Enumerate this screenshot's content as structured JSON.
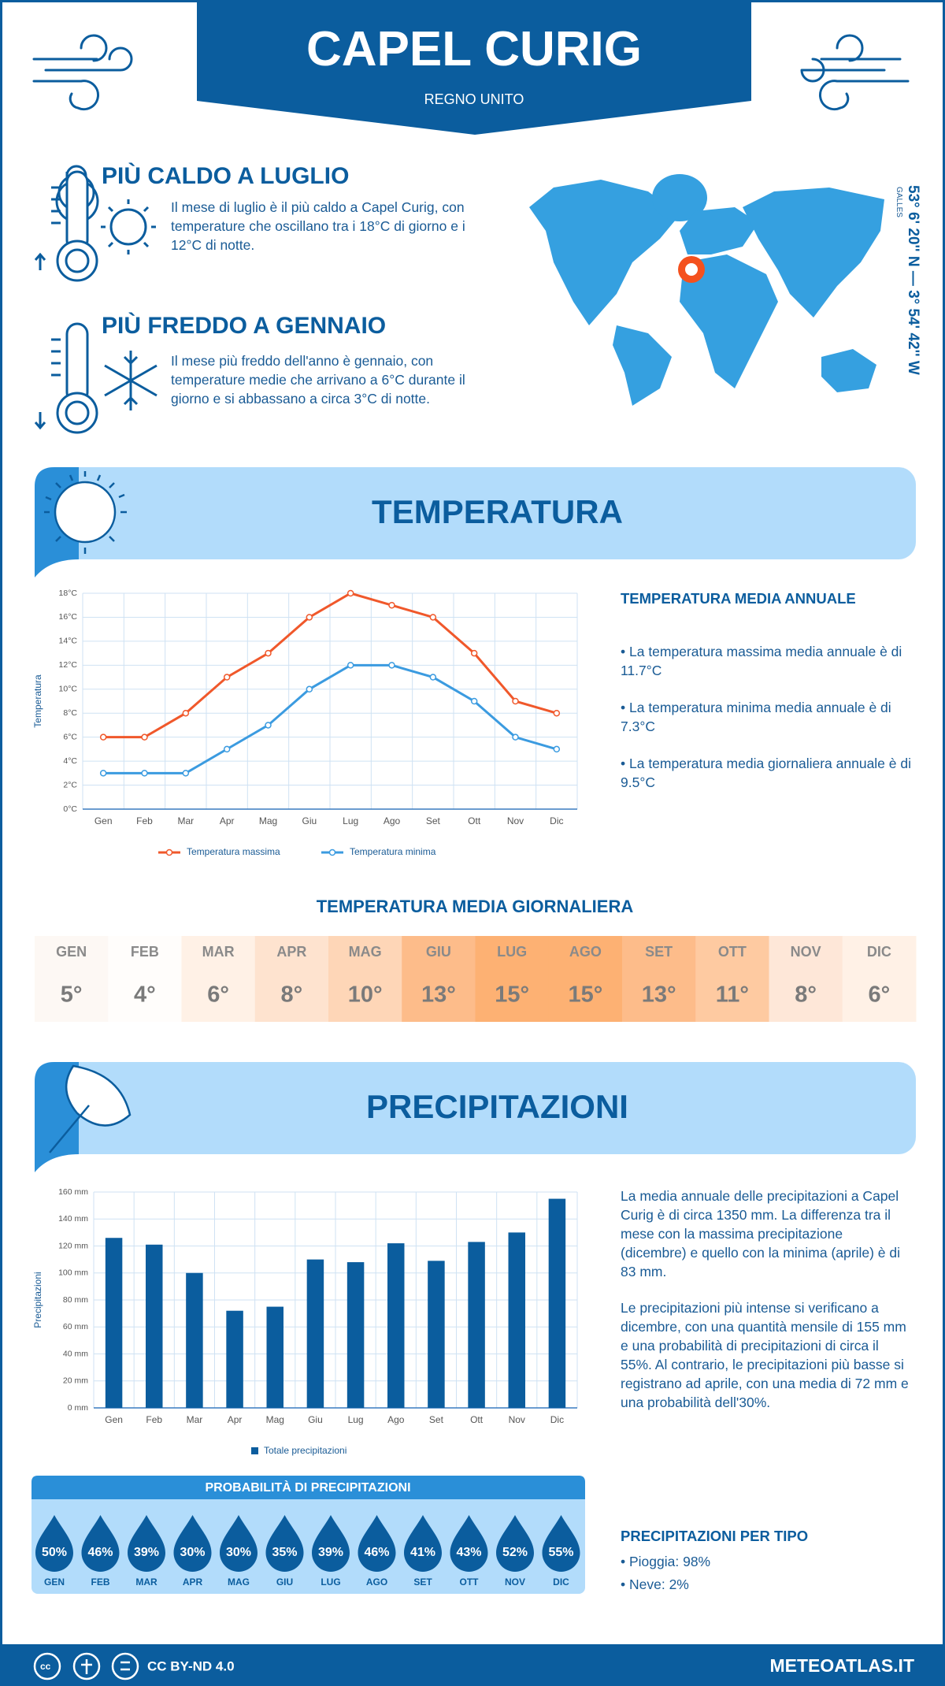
{
  "header": {
    "title": "CAPEL CURIG",
    "subtitle": "REGNO UNITO"
  },
  "location": {
    "coordinates": "53° 6' 20'' N — 3° 54' 42'' W",
    "region": "GALLES"
  },
  "warmest": {
    "title": "PIÙ CALDO A LUGLIO",
    "text": "Il mese di luglio è il più caldo a Capel Curig, con temperature che oscillano tra i 18°C di giorno e i 12°C di notte."
  },
  "coldest": {
    "title": "PIÙ FREDDO A GENNAIO",
    "text": "Il mese più freddo dell'anno è gennaio, con temperature medie che arrivano a 6°C durante il giorno e si abbassano a circa 3°C di notte."
  },
  "temperature_section": {
    "title": "TEMPERATURA"
  },
  "annual_temperature": {
    "title": "TEMPERATURA MEDIA ANNUALE",
    "items": [
      "• La temperatura massima media annuale è di 11.7°C",
      "• La temperatura minima media annuale è di 7.3°C",
      "• La temperatura media giornaliera annuale è di 9.5°C"
    ]
  },
  "daily_temperature": {
    "title": "TEMPERATURA MEDIA GIORNALIERA",
    "months": [
      "GEN",
      "FEB",
      "MAR",
      "APR",
      "MAG",
      "GIU",
      "LUG",
      "AGO",
      "SET",
      "OTT",
      "NOV",
      "DIC"
    ],
    "values": [
      "5°",
      "4°",
      "6°",
      "8°",
      "10°",
      "13°",
      "15°",
      "15°",
      "13°",
      "11°",
      "8°",
      "6°"
    ],
    "colors": [
      "#fdf8f4",
      "#fffdfb",
      "#fff1e6",
      "#fee3cf",
      "#fed6b7",
      "#fdbc8a",
      "#fdb173",
      "#fdb173",
      "#fdbc8a",
      "#fecaa1",
      "#fee7d8",
      "#fff1e6"
    ]
  },
  "precipitation_section": {
    "title": "PRECIPITAZIONI"
  },
  "precipitation_text": {
    "paragraphs": [
      "La media annuale delle precipitazioni a Capel Curig è di circa 1350 mm. La differenza tra il mese con la massima precipitazione (dicembre) e quello con la minima (aprile) è di 83 mm.",
      "Le precipitazioni più intense si verificano a dicembre, con una quantità mensile di 155 mm e una probabilità di precipitazioni di circa il 55%. Al contrario, le precipitazioni più basse si registrano ad aprile, con una media di 72 mm e una probabilità dell'30%."
    ]
  },
  "probability": {
    "title": "PROBABILITÀ DI PRECIPITAZIONI",
    "months": [
      "GEN",
      "FEB",
      "MAR",
      "APR",
      "MAG",
      "GIU",
      "LUG",
      "AGO",
      "SET",
      "OTT",
      "NOV",
      "DIC"
    ],
    "values": [
      "50%",
      "46%",
      "39%",
      "30%",
      "30%",
      "35%",
      "39%",
      "46%",
      "41%",
      "43%",
      "52%",
      "55%"
    ]
  },
  "precipitation_types": {
    "title": "PRECIPITAZIONI PER TIPO",
    "items": [
      "• Pioggia: 98%",
      "• Neve: 2%"
    ]
  },
  "footer": {
    "license": "CC BY-ND 4.0",
    "site": "METEOATLAS.IT"
  },
  "chart_data": [
    {
      "type": "line",
      "ylabel": "Temperatura",
      "categories": [
        "Gen",
        "Feb",
        "Mar",
        "Apr",
        "Mag",
        "Giu",
        "Lug",
        "Ago",
        "Set",
        "Ott",
        "Nov",
        "Dic"
      ],
      "series": [
        {
          "name": "Temperatura massima",
          "color": "#f0582b",
          "values": [
            6,
            6,
            8,
            11,
            13,
            16,
            18,
            17,
            16,
            13,
            9,
            8
          ]
        },
        {
          "name": "Temperatura minima",
          "color": "#3b9be0",
          "values": [
            3,
            3,
            3,
            5,
            7,
            10,
            12,
            12,
            11,
            9,
            6,
            5
          ]
        }
      ],
      "ylim": [
        0,
        18
      ],
      "yticks": [
        {
          "value": 0,
          "label": "0°C"
        },
        {
          "value": 2,
          "label": "2°C"
        },
        {
          "value": 4,
          "label": "4°C"
        },
        {
          "value": 6,
          "label": "6°C"
        },
        {
          "value": 8,
          "label": "8°C"
        },
        {
          "value": 10,
          "label": "10°C"
        },
        {
          "value": 12,
          "label": "12°C"
        },
        {
          "value": 14,
          "label": "14°C"
        },
        {
          "value": 16,
          "label": "16°C"
        },
        {
          "value": 18,
          "label": "18°C"
        }
      ],
      "grid": true
    },
    {
      "type": "bar",
      "ylabel": "Precipitazioni",
      "categories": [
        "Gen",
        "Feb",
        "Mar",
        "Apr",
        "Mag",
        "Giu",
        "Lug",
        "Ago",
        "Set",
        "Ott",
        "Nov",
        "Dic"
      ],
      "series": [
        {
          "name": "Totale precipitazioni",
          "color": "#0b5d9e",
          "values": [
            126,
            121,
            100,
            72,
            75,
            110,
            108,
            122,
            109,
            123,
            130,
            155
          ]
        }
      ],
      "ylim": [
        0,
        160
      ],
      "yticks": [
        {
          "value": 0,
          "label": "0 mm"
        },
        {
          "value": 20,
          "label": "20 mm"
        },
        {
          "value": 40,
          "label": "40 mm"
        },
        {
          "value": 60,
          "label": "60 mm"
        },
        {
          "value": 80,
          "label": "80 mm"
        },
        {
          "value": 100,
          "label": "100 mm"
        },
        {
          "value": 120,
          "label": "120 mm"
        },
        {
          "value": 140,
          "label": "140 mm"
        },
        {
          "value": 160,
          "label": "160 mm"
        }
      ],
      "grid": true
    }
  ]
}
